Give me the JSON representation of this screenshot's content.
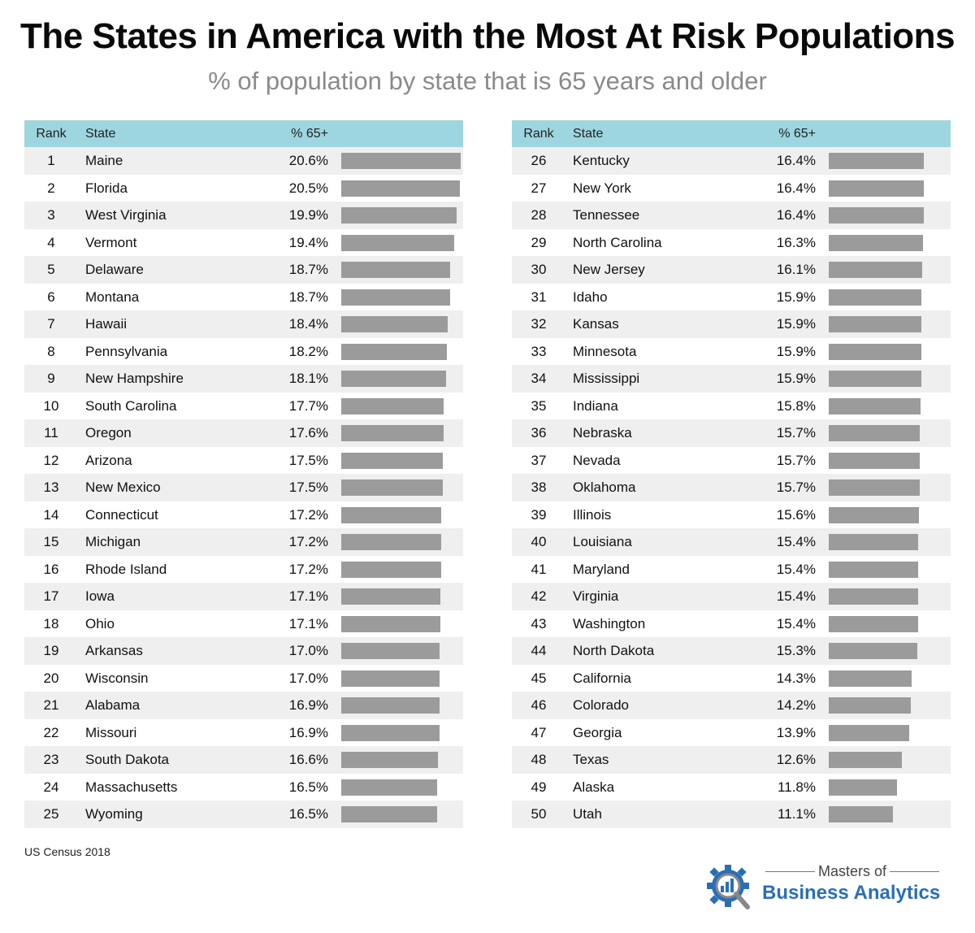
{
  "title": "The States in America with the Most At Risk Populations",
  "subtitle": "% of population by state that is 65 years and older",
  "headers": {
    "rank": "Rank",
    "state": "State",
    "pct": "% 65+"
  },
  "source": "US Census 2018",
  "logo": {
    "line1": "Masters of",
    "line2": "Business Analytics"
  },
  "colors": {
    "header": "#9dd6df",
    "bar": "#9b9b9b",
    "stripe": "#efefef",
    "logo_blue": "#2a6fb5"
  },
  "chart_data": {
    "type": "bar",
    "series": [
      {
        "values": [
          20.6,
          20.5,
          19.9,
          19.4,
          18.7,
          18.7,
          18.4,
          18.2,
          18.1,
          17.7,
          17.6,
          17.5,
          17.5,
          17.2,
          17.2,
          17.2,
          17.1,
          17.1,
          17.0,
          17.0,
          16.9,
          16.9,
          16.6,
          16.5,
          16.5,
          16.4,
          16.4,
          16.4,
          16.3,
          16.1,
          15.9,
          15.9,
          15.9,
          15.9,
          15.8,
          15.7,
          15.7,
          15.7,
          15.6,
          15.4,
          15.4,
          15.4,
          15.4,
          15.3,
          14.3,
          14.2,
          13.9,
          12.6,
          11.8,
          11.1
        ]
      }
    ],
    "categories": [
      "Maine",
      "Florida",
      "West Virginia",
      "Vermont",
      "Delaware",
      "Montana",
      "Hawaii",
      "Pennsylvania",
      "New Hampshire",
      "South Carolina",
      "Oregon",
      "Arizona",
      "New Mexico",
      "Connecticut",
      "Michigan",
      "Rhode Island",
      "Iowa",
      "Ohio",
      "Arkansas",
      "Wisconsin",
      "Alabama",
      "Missouri",
      "South Dakota",
      "Massachusetts",
      "Wyoming",
      "Kentucky",
      "New York",
      "Tennessee",
      "North Carolina",
      "New Jersey",
      "Idaho",
      "Kansas",
      "Minnesota",
      "Mississippi",
      "Indiana",
      "Nebraska",
      "Nevada",
      "Oklahoma",
      "Illinois",
      "Louisiana",
      "Maryland",
      "Virginia",
      "Washington",
      "North Dakota",
      "California",
      "Colorado",
      "Georgia",
      "Texas",
      "Alaska",
      "Utah"
    ],
    "rows": [
      {
        "rank": "1",
        "state": "Maine",
        "pct": "20.6%",
        "value": 20.6
      },
      {
        "rank": "2",
        "state": "Florida",
        "pct": "20.5%",
        "value": 20.5
      },
      {
        "rank": "3",
        "state": "West Virginia",
        "pct": "19.9%",
        "value": 19.9
      },
      {
        "rank": "4",
        "state": "Vermont",
        "pct": "19.4%",
        "value": 19.4
      },
      {
        "rank": "5",
        "state": "Delaware",
        "pct": "18.7%",
        "value": 18.7
      },
      {
        "rank": "6",
        "state": "Montana",
        "pct": "18.7%",
        "value": 18.7
      },
      {
        "rank": "7",
        "state": "Hawaii",
        "pct": "18.4%",
        "value": 18.4
      },
      {
        "rank": "8",
        "state": "Pennsylvania",
        "pct": "18.2%",
        "value": 18.2
      },
      {
        "rank": "9",
        "state": "New Hampshire",
        "pct": "18.1%",
        "value": 18.1
      },
      {
        "rank": "10",
        "state": "South Carolina",
        "pct": "17.7%",
        "value": 17.7
      },
      {
        "rank": "11",
        "state": "Oregon",
        "pct": "17.6%",
        "value": 17.6
      },
      {
        "rank": "12",
        "state": "Arizona",
        "pct": "17.5%",
        "value": 17.5
      },
      {
        "rank": "13",
        "state": "New Mexico",
        "pct": "17.5%",
        "value": 17.5
      },
      {
        "rank": "14",
        "state": "Connecticut",
        "pct": "17.2%",
        "value": 17.2
      },
      {
        "rank": "15",
        "state": "Michigan",
        "pct": "17.2%",
        "value": 17.2
      },
      {
        "rank": "16",
        "state": "Rhode Island",
        "pct": "17.2%",
        "value": 17.2
      },
      {
        "rank": "17",
        "state": "Iowa",
        "pct": "17.1%",
        "value": 17.1
      },
      {
        "rank": "18",
        "state": "Ohio",
        "pct": "17.1%",
        "value": 17.1
      },
      {
        "rank": "19",
        "state": "Arkansas",
        "pct": "17.0%",
        "value": 17.0
      },
      {
        "rank": "20",
        "state": "Wisconsin",
        "pct": "17.0%",
        "value": 17.0
      },
      {
        "rank": "21",
        "state": "Alabama",
        "pct": "16.9%",
        "value": 16.9
      },
      {
        "rank": "22",
        "state": "Missouri",
        "pct": "16.9%",
        "value": 16.9
      },
      {
        "rank": "23",
        "state": "South Dakota",
        "pct": "16.6%",
        "value": 16.6
      },
      {
        "rank": "24",
        "state": "Massachusetts",
        "pct": "16.5%",
        "value": 16.5
      },
      {
        "rank": "25",
        "state": "Wyoming",
        "pct": "16.5%",
        "value": 16.5
      },
      {
        "rank": "26",
        "state": "Kentucky",
        "pct": "16.4%",
        "value": 16.4
      },
      {
        "rank": "27",
        "state": "New York",
        "pct": "16.4%",
        "value": 16.4
      },
      {
        "rank": "28",
        "state": "Tennessee",
        "pct": "16.4%",
        "value": 16.4
      },
      {
        "rank": "29",
        "state": "North Carolina",
        "pct": "16.3%",
        "value": 16.3
      },
      {
        "rank": "30",
        "state": "New Jersey",
        "pct": "16.1%",
        "value": 16.1
      },
      {
        "rank": "31",
        "state": "Idaho",
        "pct": "15.9%",
        "value": 15.9
      },
      {
        "rank": "32",
        "state": "Kansas",
        "pct": "15.9%",
        "value": 15.9
      },
      {
        "rank": "33",
        "state": "Minnesota",
        "pct": "15.9%",
        "value": 15.9
      },
      {
        "rank": "34",
        "state": "Mississippi",
        "pct": "15.9%",
        "value": 15.9
      },
      {
        "rank": "35",
        "state": "Indiana",
        "pct": "15.8%",
        "value": 15.8
      },
      {
        "rank": "36",
        "state": "Nebraska",
        "pct": "15.7%",
        "value": 15.7
      },
      {
        "rank": "37",
        "state": "Nevada",
        "pct": "15.7%",
        "value": 15.7
      },
      {
        "rank": "38",
        "state": "Oklahoma",
        "pct": "15.7%",
        "value": 15.7
      },
      {
        "rank": "39",
        "state": "Illinois",
        "pct": "15.6%",
        "value": 15.6
      },
      {
        "rank": "40",
        "state": "Louisiana",
        "pct": "15.4%",
        "value": 15.4
      },
      {
        "rank": "41",
        "state": "Maryland",
        "pct": "15.4%",
        "value": 15.4
      },
      {
        "rank": "42",
        "state": "Virginia",
        "pct": "15.4%",
        "value": 15.4
      },
      {
        "rank": "43",
        "state": "Washington",
        "pct": "15.4%",
        "value": 15.4
      },
      {
        "rank": "44",
        "state": "North Dakota",
        "pct": "15.3%",
        "value": 15.3
      },
      {
        "rank": "45",
        "state": "California",
        "pct": "14.3%",
        "value": 14.3
      },
      {
        "rank": "46",
        "state": "Colorado",
        "pct": "14.2%",
        "value": 14.2
      },
      {
        "rank": "47",
        "state": "Georgia",
        "pct": "13.9%",
        "value": 13.9
      },
      {
        "rank": "48",
        "state": "Texas",
        "pct": "12.6%",
        "value": 12.6
      },
      {
        "rank": "49",
        "state": "Alaska",
        "pct": "11.8%",
        "value": 11.8
      },
      {
        "rank": "50",
        "state": "Utah",
        "pct": "11.1%",
        "value": 11.1
      }
    ],
    "xlim": [
      0,
      21
    ]
  }
}
